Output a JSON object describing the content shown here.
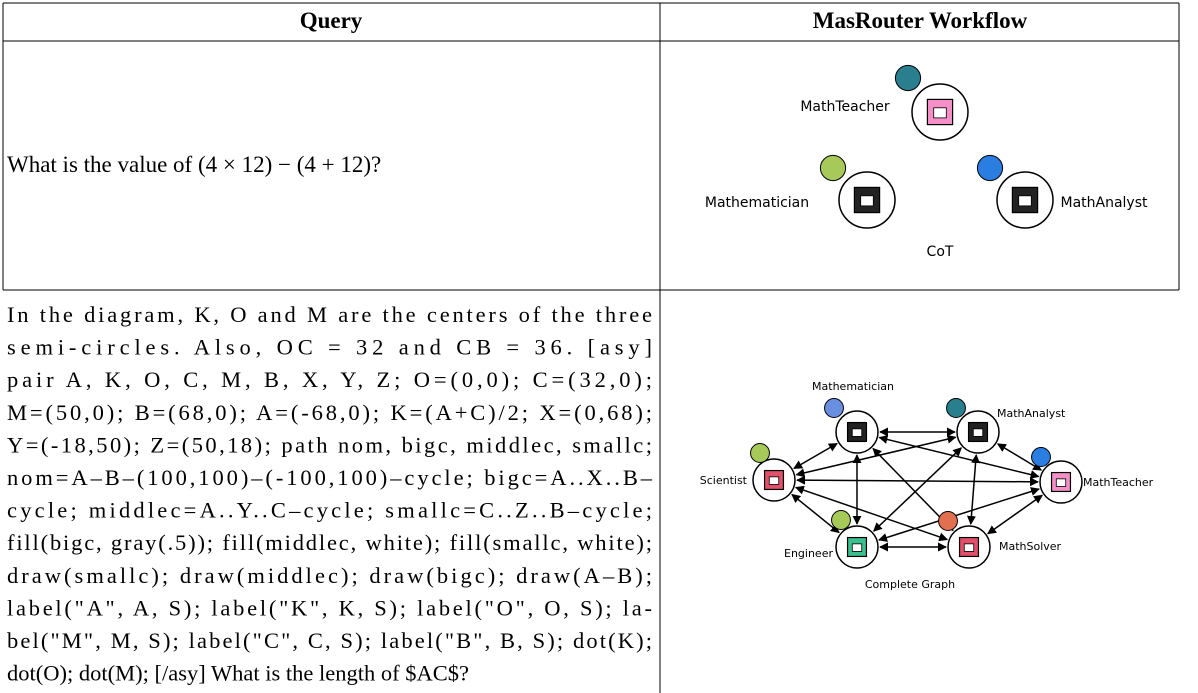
{
  "table": {
    "headers": [
      "Query",
      "MasRouter Workflow"
    ],
    "rows": [
      {
        "query": [
          "What is the value of (4 × 12) − (4 + 12)?"
        ],
        "workflow": {
          "nodes": [
            "MathTeacher",
            "Mathematician",
            "MathAnalyst"
          ],
          "caption": "CoT"
        }
      },
      {
        "query": [
          "In the diagram, K, O and M are the centers of the three",
          "semi-circles. Also, OC = 32 and CB = 36. [asy]",
          "pair A, K, O, C, M, B, X, Y, Z; O=(0,0); C=(32,0);",
          "M=(50,0); B=(68,0); A=(-68,0); K=(A+C)/2; X=(0,68);",
          "Y=(-18,50); Z=(50,18); path nom, bigc, middlec, smallc;",
          "nom=A–B–(100,100)–(-100,100)–cycle; bigc=A..X..B–",
          "cycle; middlec=A..Y..C–cycle; smallc=C..Z..B–cycle;",
          "fill(bigc, gray(.5)); fill(middlec, white); fill(smallc, white);",
          "draw(smallc); draw(middlec); draw(bigc); draw(A–B);",
          "label(\"A\", A, S); label(\"K\", K, S); label(\"O\", O, S); la-",
          "bel(\"M\", M, S); label(\"C\", C, S); label(\"B\", B, S); dot(K);",
          "dot(O); dot(M); [/asy] What is the length of $AC$?"
        ],
        "workflow": {
          "nodes": [
            "Mathematician",
            "MathAnalyst",
            "MathTeacher",
            "Scientist",
            "Engineer",
            "MathSolver"
          ],
          "caption": "Complete Graph"
        }
      }
    ]
  }
}
